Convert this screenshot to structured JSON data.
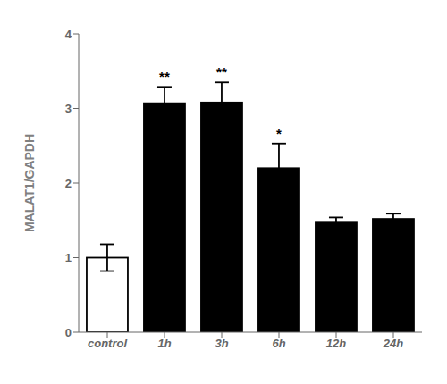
{
  "chart_data": {
    "type": "bar",
    "categories": [
      "control",
      "1h",
      "3h",
      "6h",
      "12h",
      "24h"
    ],
    "values": [
      1.0,
      3.07,
      3.08,
      2.2,
      1.47,
      1.52
    ],
    "errors": [
      0.18,
      0.22,
      0.27,
      0.33,
      0.07,
      0.07
    ],
    "colors": [
      "white",
      "black",
      "black",
      "black",
      "black",
      "black"
    ],
    "annotations": [
      null,
      "**",
      "**",
      "*",
      null,
      null
    ],
    "ylabel": "MALAT1/GAPDH",
    "ylim": [
      0,
      4
    ],
    "yticks": [
      0,
      1,
      2,
      3,
      4
    ],
    "grid": false
  }
}
